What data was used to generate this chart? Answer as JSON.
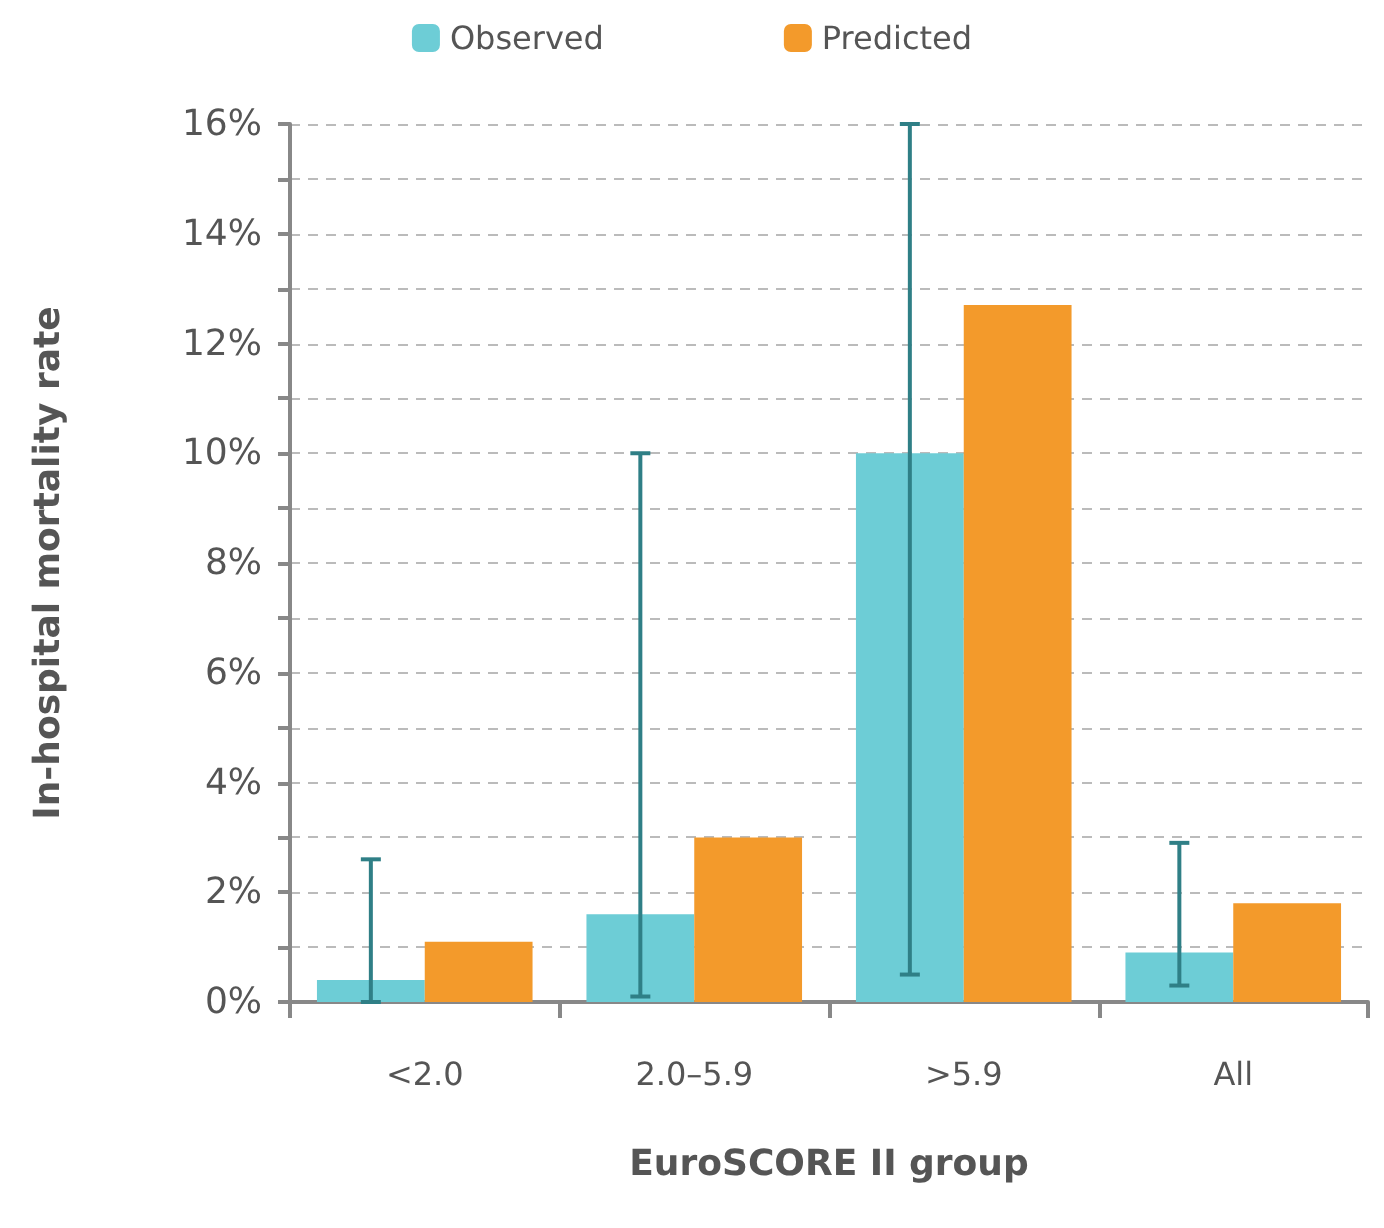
{
  "chart_data": {
    "type": "bar",
    "xlabel": "EuroSCORE II group",
    "ylabel": "In-hospital mortality rate",
    "categories": [
      "<2.0",
      "2.0–5.9",
      ">5.9",
      "All"
    ],
    "series": [
      {
        "name": "Observed",
        "color": "#6dcdd6",
        "values": [
          0.4,
          1.6,
          10.0,
          0.9
        ],
        "errors": [
          [
            0,
            2.6
          ],
          [
            0.1,
            10.0
          ],
          [
            0.5,
            16
          ],
          [
            0.3,
            2.9
          ]
        ]
      },
      {
        "name": "Predicted",
        "color": "#f39a2b",
        "values": [
          1.1,
          3.0,
          12.7,
          1.8
        ]
      }
    ],
    "ylim": [
      0,
      16
    ],
    "yticks": [
      {
        "value": 0,
        "label": "0%"
      },
      {
        "value": 1,
        "label": null
      },
      {
        "value": 2,
        "label": "2%"
      },
      {
        "value": 3,
        "label": null
      },
      {
        "value": 4,
        "label": "4%"
      },
      {
        "value": 5,
        "label": null
      },
      {
        "value": 6,
        "label": "6%"
      },
      {
        "value": 7,
        "label": null
      },
      {
        "value": 8,
        "label": "8%"
      },
      {
        "value": 9,
        "label": null
      },
      {
        "value": 10,
        "label": "10%"
      },
      {
        "value": 11,
        "label": null
      },
      {
        "value": 12,
        "label": "12%"
      },
      {
        "value": 13,
        "label": null
      },
      {
        "value": 14,
        "label": "14%"
      },
      {
        "value": 15,
        "label": null
      },
      {
        "value": 16,
        "label": "16%"
      }
    ],
    "grid": "y",
    "legend": "top"
  }
}
